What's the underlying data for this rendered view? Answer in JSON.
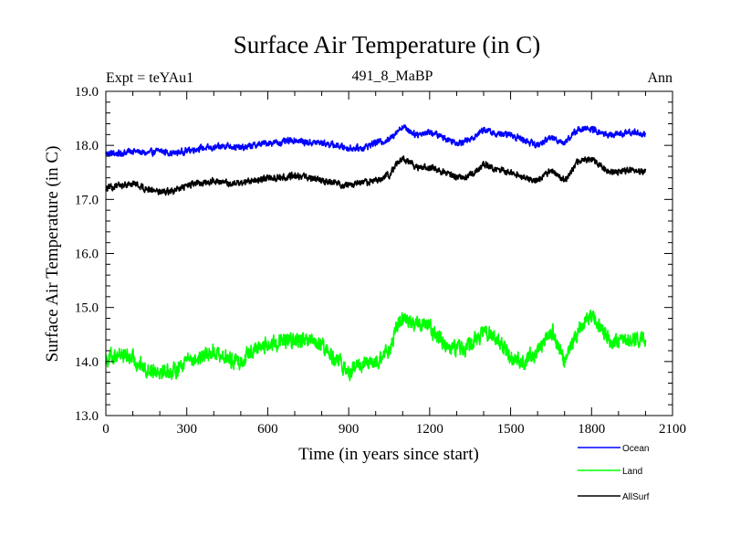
{
  "chart_data": {
    "type": "line",
    "title": "Surface Air Temperature (in C)",
    "subtitle_left": "Expt = teYAu1",
    "subtitle_center": "491_8_MaBP",
    "subtitle_right": "Ann",
    "xlabel": "Time (in years since start)",
    "ylabel": "Surface Air Temperature (in C)",
    "xlim": [
      0,
      2100
    ],
    "ylim": [
      13.0,
      19.0
    ],
    "xticks": [
      0,
      300,
      600,
      900,
      1200,
      1500,
      1800,
      2100
    ],
    "yticks": [
      13.0,
      14.0,
      15.0,
      16.0,
      17.0,
      18.0,
      19.0
    ],
    "ytick_labels": [
      "13.0",
      "14.0",
      "15.0",
      "16.0",
      "17.0",
      "18.0",
      "19.0"
    ],
    "legend": [
      "Ocean",
      "Land",
      "AllSurf"
    ],
    "series": [
      {
        "name": "Ocean",
        "color": "#0000ff",
        "x": [
          0,
          50,
          100,
          150,
          200,
          250,
          300,
          350,
          400,
          450,
          500,
          550,
          600,
          650,
          700,
          750,
          800,
          850,
          900,
          950,
          1000,
          1050,
          1075,
          1100,
          1150,
          1200,
          1250,
          1300,
          1350,
          1400,
          1450,
          1500,
          1550,
          1600,
          1650,
          1700,
          1750,
          1800,
          1850,
          1900,
          1950,
          2000
        ],
        "values": [
          17.85,
          17.85,
          17.9,
          17.85,
          17.9,
          17.85,
          17.9,
          17.95,
          17.95,
          18.0,
          17.95,
          18.0,
          18.05,
          18.05,
          18.1,
          18.05,
          18.05,
          18.0,
          17.95,
          17.95,
          18.05,
          18.1,
          18.25,
          18.35,
          18.2,
          18.25,
          18.15,
          18.05,
          18.1,
          18.3,
          18.2,
          18.2,
          18.1,
          18.0,
          18.15,
          18.05,
          18.3,
          18.3,
          18.2,
          18.2,
          18.25,
          18.2
        ]
      },
      {
        "name": "Land",
        "color": "#00ff00",
        "x": [
          0,
          50,
          100,
          150,
          200,
          250,
          300,
          350,
          400,
          450,
          500,
          550,
          600,
          650,
          700,
          750,
          800,
          850,
          900,
          950,
          1000,
          1050,
          1075,
          1100,
          1150,
          1200,
          1250,
          1300,
          1350,
          1400,
          1450,
          1500,
          1550,
          1600,
          1650,
          1700,
          1750,
          1800,
          1850,
          1900,
          1950,
          2000
        ],
        "values": [
          14.05,
          14.15,
          14.05,
          13.85,
          13.85,
          13.8,
          14.05,
          14.05,
          14.2,
          14.05,
          14.0,
          14.25,
          14.3,
          14.35,
          14.4,
          14.35,
          14.3,
          14.05,
          13.8,
          13.95,
          13.95,
          14.2,
          14.6,
          14.8,
          14.7,
          14.65,
          14.35,
          14.25,
          14.3,
          14.55,
          14.4,
          14.1,
          14.0,
          14.2,
          14.6,
          14.0,
          14.6,
          14.85,
          14.5,
          14.3,
          14.45,
          14.4
        ]
      },
      {
        "name": "AllSurf",
        "color": "#000000",
        "x": [
          0,
          50,
          100,
          150,
          200,
          250,
          300,
          350,
          400,
          450,
          500,
          550,
          600,
          650,
          700,
          750,
          800,
          850,
          900,
          950,
          1000,
          1050,
          1075,
          1100,
          1150,
          1200,
          1250,
          1300,
          1350,
          1400,
          1450,
          1500,
          1550,
          1600,
          1650,
          1700,
          1750,
          1800,
          1850,
          1900,
          1950,
          2000
        ],
        "values": [
          17.2,
          17.25,
          17.3,
          17.2,
          17.15,
          17.15,
          17.25,
          17.3,
          17.35,
          17.3,
          17.3,
          17.35,
          17.4,
          17.4,
          17.45,
          17.4,
          17.35,
          17.3,
          17.25,
          17.3,
          17.35,
          17.45,
          17.65,
          17.75,
          17.6,
          17.6,
          17.5,
          17.4,
          17.45,
          17.65,
          17.55,
          17.5,
          17.4,
          17.35,
          17.55,
          17.35,
          17.7,
          17.75,
          17.55,
          17.5,
          17.55,
          17.5
        ]
      }
    ]
  }
}
